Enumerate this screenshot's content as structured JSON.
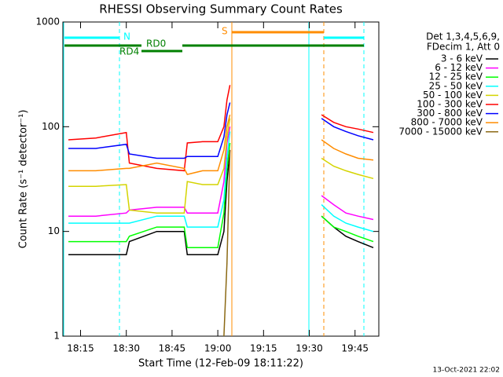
{
  "chart_data": {
    "type": "line",
    "title": "RHESSI Observing Summary Count Rates",
    "xlabel": "Start Time (12-Feb-09 18:11:22)",
    "ylabel": "Count Rate (s⁻¹ detector⁻¹)",
    "legend_header": [
      "Det 1,3,4,5,6,9,",
      "FDecim 1, Att 0"
    ],
    "footer": "13-Oct-2021 22:02",
    "annotations": [
      "N",
      "S",
      "RD0",
      "RD4"
    ],
    "log_y": true,
    "legend": "right",
    "x": [
      1091,
      1100,
      1110,
      1111,
      1120,
      1129,
      1130,
      1135,
      1140,
      1142,
      1143,
      1144,
      1160,
      1174,
      1178,
      1182,
      1186,
      1191
    ],
    "xlim": [
      1089.2,
      1192.8
    ],
    "xticks": [
      {
        "value": 1095,
        "label": "18:15"
      },
      {
        "value": 1110,
        "label": "18:30"
      },
      {
        "value": 1125,
        "label": "18:45"
      },
      {
        "value": 1140,
        "label": "19:00"
      },
      {
        "value": 1155,
        "label": "19:15"
      },
      {
        "value": 1170,
        "label": "19:30"
      },
      {
        "value": 1185,
        "label": "19:45"
      }
    ],
    "ylim": [
      1,
      1000
    ],
    "yticks": [
      1,
      10,
      100,
      1000
    ],
    "series": [
      {
        "name": "3 - 6 keV",
        "color": "#000000",
        "values": [
          6,
          6,
          6,
          8,
          10,
          10,
          6,
          6,
          6,
          10,
          30,
          60,
          null,
          14,
          11,
          9,
          8,
          7
        ]
      },
      {
        "name": "6 - 12 keV",
        "color": "#ff00ff",
        "values": [
          14,
          14,
          15,
          16,
          17,
          17,
          15,
          15,
          15,
          30,
          70,
          100,
          null,
          22,
          18,
          15,
          14,
          13
        ]
      },
      {
        "name": "12 - 25 keV",
        "color": "#00ff00",
        "values": [
          8,
          8,
          8,
          9,
          11,
          11,
          7,
          7,
          7,
          15,
          40,
          70,
          null,
          14,
          11,
          10,
          9,
          8
        ]
      },
      {
        "name": "25 - 50 keV",
        "color": "#00ffff",
        "values": [
          12,
          12,
          12,
          12,
          14,
          14,
          11,
          11,
          11,
          20,
          50,
          90,
          null,
          18,
          14,
          12,
          11,
          10
        ]
      },
      {
        "name": "50 - 100 keV",
        "color": "#d4d400",
        "values": [
          27,
          27,
          28,
          16,
          15,
          15,
          30,
          28,
          28,
          40,
          80,
          120,
          null,
          50,
          42,
          38,
          35,
          32
        ]
      },
      {
        "name": "100 - 300 keV",
        "color": "#ff0000",
        "values": [
          75,
          78,
          88,
          45,
          40,
          38,
          70,
          72,
          72,
          100,
          180,
          250,
          null,
          130,
          110,
          100,
          95,
          88
        ]
      },
      {
        "name": "300 - 800 keV",
        "color": "#0000ff",
        "values": [
          62,
          62,
          68,
          55,
          50,
          50,
          52,
          52,
          52,
          80,
          130,
          170,
          null,
          120,
          100,
          90,
          82,
          75
        ]
      },
      {
        "name": "800 - 7000 keV",
        "color": "#ff8c00",
        "values": [
          38,
          38,
          40,
          40,
          45,
          40,
          35,
          38,
          38,
          60,
          100,
          130,
          null,
          75,
          62,
          55,
          50,
          48
        ]
      },
      {
        "name": "7000 - 15000 keV",
        "color": "#8b6914",
        "values": [
          null,
          null,
          null,
          null,
          null,
          null,
          null,
          null,
          null,
          1,
          5,
          60,
          null,
          null,
          null,
          null,
          null,
          null
        ]
      }
    ]
  }
}
